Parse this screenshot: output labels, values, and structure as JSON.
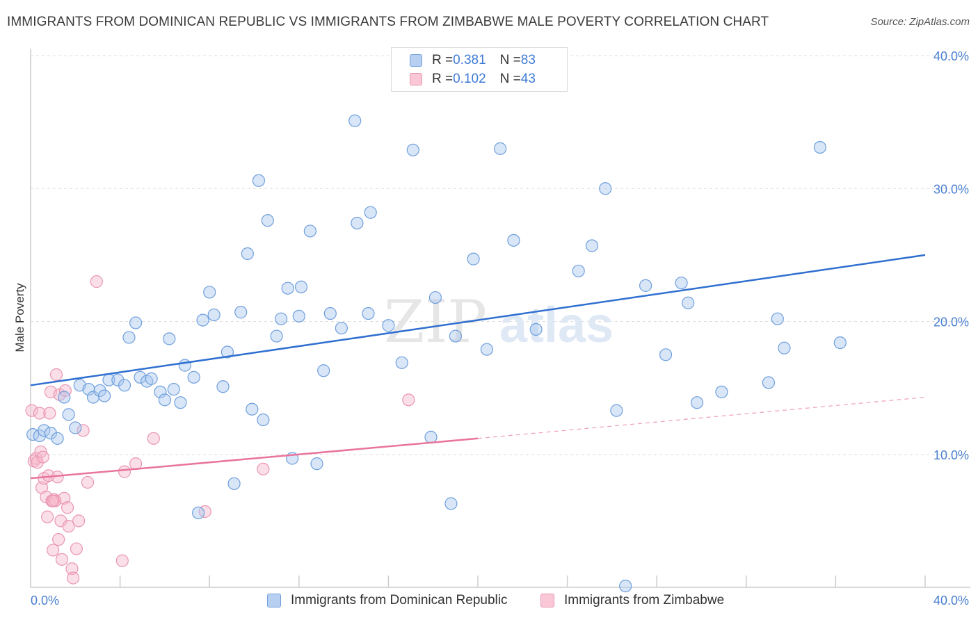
{
  "header": {
    "title": "IMMIGRANTS FROM DOMINICAN REPUBLIC VS IMMIGRANTS FROM ZIMBABWE MALE POVERTY CORRELATION CHART",
    "source": "Source: ZipAtlas.com"
  },
  "watermark": {
    "part1": "ZIP",
    "part2": "atlas"
  },
  "legend": {
    "rows": [
      {
        "r_label": "R = ",
        "r_value": "0.381",
        "n_label": "N = ",
        "n_value": "83",
        "color": "#a9c8f0"
      },
      {
        "r_label": "R = ",
        "r_value": "0.102",
        "n_label": "N = ",
        "n_value": "43",
        "color": "#f7b8cb"
      }
    ]
  },
  "bottom_legend": {
    "items": [
      {
        "label": "Immigrants from Dominican Republic",
        "color": "#a9c8f0"
      },
      {
        "label": "Immigrants from Zimbabwe",
        "color": "#f7b8cb"
      }
    ]
  },
  "colors": {
    "blue_fill": "#a9c8f0",
    "blue_stroke": "#6f9fdc",
    "blue_line": "#2f6fd0",
    "pink_fill": "#f7b8cb",
    "pink_stroke": "#e996b0",
    "pink_line": "#e8749c",
    "tick_text": "#4a7fd0",
    "grid": "#dddddd"
  },
  "chart_data": {
    "type": "scatter",
    "title": "IMMIGRANTS FROM DOMINICAN REPUBLIC VS IMMIGRANTS FROM ZIMBABWE MALE POVERTY CORRELATION CHART",
    "xlabel": "",
    "ylabel": "Male Poverty",
    "xlim": [
      0,
      40
    ],
    "ylim": [
      0,
      40
    ],
    "x_tick_labels": [
      "0.0%",
      "40.0%"
    ],
    "y_tick_labels": [
      "10.0%",
      "20.0%",
      "30.0%",
      "40.0%"
    ],
    "y_ticks": [
      10,
      20,
      30,
      40
    ],
    "grid": true,
    "legend_position": "top-center",
    "series": [
      {
        "name": "Immigrants from Dominican Republic",
        "R": 0.381,
        "N": 83,
        "trend": {
          "x": [
            0,
            40
          ],
          "y": [
            15.2,
            25.0
          ],
          "style": "solid"
        },
        "points": [
          [
            0.1,
            11.5
          ],
          [
            0.4,
            11.4
          ],
          [
            0.6,
            11.8
          ],
          [
            0.9,
            11.6
          ],
          [
            1.2,
            11.2
          ],
          [
            1.5,
            14.3
          ],
          [
            1.7,
            13.0
          ],
          [
            2.0,
            12.0
          ],
          [
            2.2,
            15.2
          ],
          [
            2.6,
            14.9
          ],
          [
            2.8,
            14.3
          ],
          [
            3.1,
            14.8
          ],
          [
            3.3,
            14.4
          ],
          [
            3.5,
            15.6
          ],
          [
            3.9,
            15.6
          ],
          [
            4.2,
            15.2
          ],
          [
            4.4,
            18.8
          ],
          [
            4.7,
            19.9
          ],
          [
            4.9,
            15.8
          ],
          [
            5.2,
            15.5
          ],
          [
            5.4,
            15.7
          ],
          [
            5.8,
            14.7
          ],
          [
            6.0,
            14.1
          ],
          [
            6.2,
            18.7
          ],
          [
            6.4,
            14.9
          ],
          [
            6.7,
            13.9
          ],
          [
            6.9,
            16.7
          ],
          [
            7.3,
            15.8
          ],
          [
            7.5,
            5.6
          ],
          [
            7.7,
            20.1
          ],
          [
            8.0,
            22.2
          ],
          [
            8.2,
            20.5
          ],
          [
            8.6,
            15.1
          ],
          [
            8.8,
            17.7
          ],
          [
            9.1,
            7.8
          ],
          [
            9.4,
            20.7
          ],
          [
            9.7,
            25.1
          ],
          [
            9.9,
            13.4
          ],
          [
            10.2,
            30.6
          ],
          [
            10.4,
            12.6
          ],
          [
            10.6,
            27.6
          ],
          [
            11.0,
            18.9
          ],
          [
            11.2,
            20.2
          ],
          [
            11.5,
            22.5
          ],
          [
            11.7,
            9.7
          ],
          [
            12.0,
            20.4
          ],
          [
            12.1,
            22.6
          ],
          [
            12.5,
            26.8
          ],
          [
            12.8,
            9.3
          ],
          [
            13.1,
            16.3
          ],
          [
            13.4,
            20.6
          ],
          [
            13.9,
            19.5
          ],
          [
            14.5,
            35.1
          ],
          [
            14.6,
            27.4
          ],
          [
            15.1,
            20.6
          ],
          [
            15.2,
            28.2
          ],
          [
            16.0,
            19.7
          ],
          [
            16.6,
            16.9
          ],
          [
            17.1,
            32.9
          ],
          [
            17.9,
            11.3
          ],
          [
            18.1,
            21.8
          ],
          [
            18.8,
            6.3
          ],
          [
            19.0,
            18.9
          ],
          [
            19.8,
            24.7
          ],
          [
            20.4,
            17.9
          ],
          [
            21.0,
            33.0
          ],
          [
            21.6,
            26.1
          ],
          [
            22.6,
            19.4
          ],
          [
            24.5,
            23.8
          ],
          [
            25.1,
            25.7
          ],
          [
            25.7,
            30.0
          ],
          [
            26.2,
            13.3
          ],
          [
            26.6,
            0.1
          ],
          [
            27.5,
            22.7
          ],
          [
            28.4,
            17.5
          ],
          [
            29.1,
            22.9
          ],
          [
            29.4,
            21.4
          ],
          [
            29.8,
            13.9
          ],
          [
            30.9,
            14.7
          ],
          [
            33.0,
            15.4
          ],
          [
            33.4,
            20.2
          ],
          [
            33.7,
            18.0
          ],
          [
            35.3,
            33.1
          ],
          [
            36.2,
            18.4
          ]
        ]
      },
      {
        "name": "Immigrants from Zimbabwe",
        "R": 0.102,
        "N": 43,
        "trend": {
          "x": [
            0,
            20
          ],
          "y": [
            8.2,
            11.2
          ],
          "style": "solid",
          "extended": {
            "x": [
              20,
              40
            ],
            "y": [
              11.2,
              14.3
            ],
            "style": "dashed"
          }
        },
        "points": [
          [
            0.05,
            13.3
          ],
          [
            0.15,
            9.5
          ],
          [
            0.25,
            9.7
          ],
          [
            0.3,
            9.4
          ],
          [
            0.4,
            13.1
          ],
          [
            0.45,
            10.2
          ],
          [
            0.5,
            7.5
          ],
          [
            0.55,
            9.8
          ],
          [
            0.6,
            8.2
          ],
          [
            0.7,
            6.8
          ],
          [
            0.75,
            5.3
          ],
          [
            0.8,
            8.4
          ],
          [
            0.85,
            13.1
          ],
          [
            0.9,
            14.7
          ],
          [
            0.95,
            6.5
          ],
          [
            1.0,
            2.8
          ],
          [
            1.05,
            6.6
          ],
          [
            1.1,
            6.5
          ],
          [
            1.15,
            16.0
          ],
          [
            1.2,
            8.3
          ],
          [
            1.25,
            3.6
          ],
          [
            1.3,
            14.5
          ],
          [
            1.35,
            5.0
          ],
          [
            1.4,
            2.1
          ],
          [
            1.5,
            6.7
          ],
          [
            1.55,
            14.8
          ],
          [
            1.65,
            6.0
          ],
          [
            1.7,
            4.6
          ],
          [
            1.85,
            1.4
          ],
          [
            1.9,
            0.7
          ],
          [
            2.05,
            2.9
          ],
          [
            2.15,
            5.0
          ],
          [
            2.35,
            11.8
          ],
          [
            2.55,
            7.9
          ],
          [
            2.95,
            23.0
          ],
          [
            4.1,
            2.0
          ],
          [
            4.2,
            8.7
          ],
          [
            4.7,
            9.3
          ],
          [
            5.5,
            11.2
          ],
          [
            7.8,
            5.7
          ],
          [
            10.4,
            8.9
          ],
          [
            16.9,
            14.1
          ],
          [
            1.0,
            6.5
          ]
        ]
      }
    ]
  }
}
